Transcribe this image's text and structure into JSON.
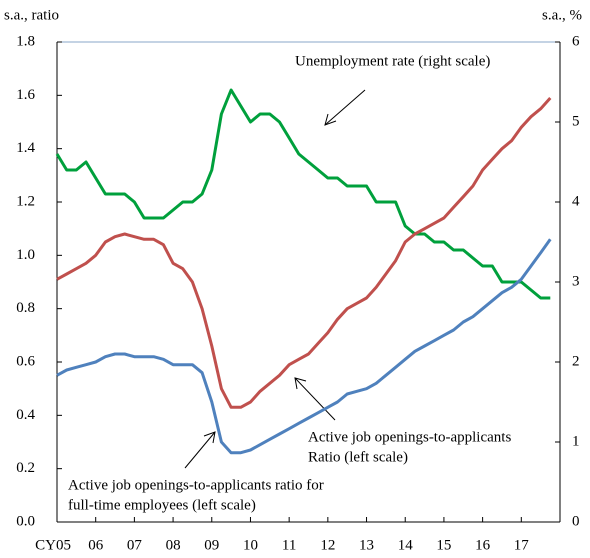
{
  "chart_data": {
    "type": "line",
    "y_label": "s.a., ratio",
    "y2_label": "s.a., %",
    "x": [
      2005,
      2005.25,
      2005.5,
      2005.75,
      2006,
      2006.25,
      2006.5,
      2006.75,
      2007,
      2007.25,
      2007.5,
      2007.75,
      2008,
      2008.25,
      2008.5,
      2008.75,
      2009,
      2009.25,
      2009.5,
      2009.75,
      2010,
      2010.25,
      2010.5,
      2010.75,
      2011,
      2011.25,
      2011.5,
      2011.75,
      2012,
      2012.25,
      2012.5,
      2012.75,
      2013,
      2013.25,
      2013.5,
      2013.75,
      2014,
      2014.25,
      2014.5,
      2014.75,
      2015,
      2015.25,
      2015.5,
      2015.75,
      2016,
      2016.25,
      2016.5,
      2016.75,
      2017,
      2017.25,
      2017.5,
      2017.75
    ],
    "series": [
      {
        "color": "#00a03c",
        "axis": "y2",
        "values": [
          4.6,
          4.4,
          4.4,
          4.5,
          4.3,
          4.1,
          4.1,
          4.1,
          4.0,
          3.8,
          3.8,
          3.8,
          3.9,
          4.0,
          4.0,
          4.1,
          4.4,
          5.1,
          5.4,
          5.2,
          5.0,
          5.1,
          5.1,
          5.0,
          4.8,
          4.6,
          4.5,
          4.4,
          4.3,
          4.3,
          4.2,
          4.2,
          4.2,
          4.0,
          4.0,
          4.0,
          3.7,
          3.6,
          3.6,
          3.5,
          3.5,
          3.4,
          3.4,
          3.3,
          3.2,
          3.2,
          3.0,
          3.0,
          3.0,
          2.9,
          2.8,
          2.8
        ]
      },
      {
        "color": "#c0504d",
        "values": [
          0.91,
          0.93,
          0.95,
          0.97,
          1.0,
          1.05,
          1.07,
          1.08,
          1.07,
          1.06,
          1.06,
          1.04,
          0.97,
          0.95,
          0.9,
          0.8,
          0.66,
          0.5,
          0.43,
          0.43,
          0.45,
          0.49,
          0.52,
          0.55,
          0.59,
          0.61,
          0.63,
          0.67,
          0.71,
          0.76,
          0.8,
          0.82,
          0.84,
          0.88,
          0.93,
          0.98,
          1.05,
          1.08,
          1.1,
          1.12,
          1.14,
          1.18,
          1.22,
          1.26,
          1.32,
          1.36,
          1.4,
          1.43,
          1.48,
          1.52,
          1.55,
          1.59
        ]
      },
      {
        "color": "#4f81bd",
        "values": [
          0.55,
          0.57,
          0.58,
          0.59,
          0.6,
          0.62,
          0.63,
          0.63,
          0.62,
          0.62,
          0.62,
          0.61,
          0.59,
          0.59,
          0.59,
          0.56,
          0.45,
          0.3,
          0.26,
          0.26,
          0.27,
          0.29,
          0.31,
          0.33,
          0.35,
          0.37,
          0.39,
          0.41,
          0.43,
          0.45,
          0.48,
          0.49,
          0.5,
          0.52,
          0.55,
          0.58,
          0.61,
          0.64,
          0.66,
          0.68,
          0.7,
          0.72,
          0.75,
          0.77,
          0.8,
          0.83,
          0.86,
          0.88,
          0.91,
          0.96,
          1.01,
          1.06
        ]
      }
    ],
    "annotations": [
      {
        "lines": [
          "Unemployment rate (right scale)"
        ]
      },
      {
        "lines": [
          "Active job openings-to-applicants",
          "Ratio (left scale)"
        ]
      },
      {
        "lines": [
          "Active job openings-to-applicants ratio for",
          "full-time employees (left scale)"
        ]
      }
    ],
    "xlim": [
      2005,
      2018
    ],
    "xticks": [
      {
        "value": 2005,
        "label": "CY05"
      },
      {
        "value": 2006,
        "label": "06"
      },
      {
        "value": 2007,
        "label": "07"
      },
      {
        "value": 2008,
        "label": "08"
      },
      {
        "value": 2009,
        "label": "09"
      },
      {
        "value": 2010,
        "label": "10"
      },
      {
        "value": 2011,
        "label": "11"
      },
      {
        "value": 2012,
        "label": "12"
      },
      {
        "value": 2013,
        "label": "13"
      },
      {
        "value": 2014,
        "label": "14"
      },
      {
        "value": 2015,
        "label": "15"
      },
      {
        "value": 2016,
        "label": "16"
      },
      {
        "value": 2017,
        "label": "17"
      }
    ],
    "ylim": [
      0,
      1.8
    ],
    "yticks": [
      {
        "value": 0,
        "label": "0.0"
      },
      0.2,
      0.4,
      0.6,
      0.8,
      {
        "value": 1,
        "label": "1.0"
      },
      1.2,
      1.4,
      1.6,
      1.8
    ],
    "y2lim": [
      0,
      6
    ],
    "y2ticks": [
      0,
      1,
      2,
      3,
      4,
      5,
      6
    ]
  }
}
